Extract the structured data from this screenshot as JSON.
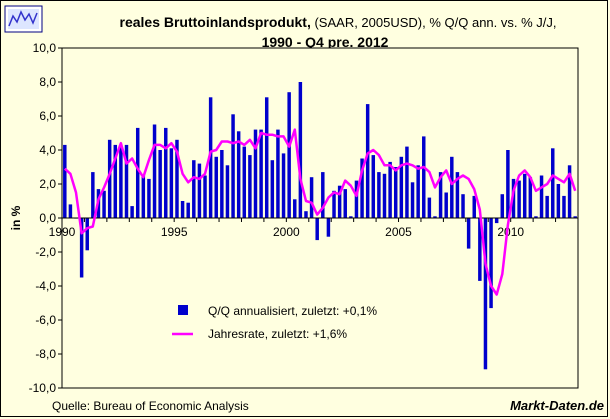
{
  "chart_data": {
    "type": "bar",
    "title_bold": "reales Bruttoinlandsprodukt,",
    "title_normal": " (SAAR, 2005USD), % Q/Q ann. vs. % J/J,",
    "title_line2": "1990 - Q4 pre. 2012",
    "ylabel": "in %",
    "xlabel": "",
    "ylim": [
      -10,
      10
    ],
    "y_ticks": [
      "10,0",
      "8,0",
      "6,0",
      "4,0",
      "2,0",
      "0,0",
      "-2,0",
      "-4,0",
      "-6,0",
      "-8,0",
      "-10,0"
    ],
    "x_ticks": [
      "1990",
      "1995",
      "2000",
      "2005",
      "2010"
    ],
    "start_year": 1990,
    "series": [
      {
        "name": "Q/Q annualisiert, zuletzt: +0,1%",
        "type": "bar",
        "color": "#0000cc",
        "values": [
          4.3,
          0.8,
          0.0,
          -3.5,
          -1.9,
          2.7,
          1.7,
          1.6,
          4.6,
          4.3,
          4.2,
          4.3,
          0.7,
          5.3,
          2.5,
          2.3,
          5.5,
          4.0,
          5.3,
          4.1,
          4.6,
          1.0,
          0.9,
          3.4,
          3.2,
          2.5,
          7.1,
          3.6,
          4.0,
          3.1,
          6.1,
          5.1,
          4.2,
          3.7,
          5.2,
          5.2,
          7.1,
          3.4,
          5.2,
          3.8,
          7.4,
          1.1,
          8.0,
          0.4,
          2.4,
          -1.3,
          2.7,
          -1.1,
          1.6,
          1.9,
          1.7,
          0.1,
          2.2,
          3.5,
          6.7,
          3.7,
          2.7,
          2.6,
          3.3,
          3.0,
          3.6,
          4.2,
          2.1,
          3.1,
          4.8,
          1.2,
          0.1,
          2.7,
          1.5,
          3.6,
          2.7,
          1.4,
          -1.8,
          1.3,
          -3.7,
          -8.9,
          -5.3,
          -0.3,
          1.4,
          4.0,
          2.3,
          2.2,
          2.6,
          2.4,
          0.1,
          2.5,
          1.3,
          4.1,
          2.0,
          1.3,
          3.1,
          0.1
        ]
      },
      {
        "name": "Jahresrate, zuletzt: +1,6%",
        "type": "line",
        "color": "#ff00ff",
        "values": [
          2.9,
          2.6,
          1.5,
          -0.9,
          -0.6,
          -0.5,
          1.1,
          1.8,
          2.6,
          3.5,
          4.4,
          3.2,
          3.5,
          2.9,
          2.4,
          3.4,
          4.3,
          4.3,
          4.1,
          4.4,
          3.9,
          2.6,
          2.1,
          2.4,
          2.3,
          2.6,
          3.9,
          4.0,
          4.5,
          4.5,
          4.4,
          4.5,
          4.3,
          4.6,
          4.1,
          5.0,
          4.9,
          4.9,
          4.8,
          4.8,
          4.2,
          5.2,
          2.3,
          1.0,
          0.9,
          0.2,
          0.6,
          1.2,
          1.5,
          1.4,
          2.2,
          1.9,
          1.3,
          2.8,
          3.8,
          4.0,
          3.7,
          3.1,
          3.1,
          2.8,
          3.1,
          3.2,
          3.1,
          2.9,
          3.0,
          2.7,
          1.8,
          2.4,
          2.8,
          2.0,
          2.3,
          2.5,
          2.3,
          1.7,
          0.5,
          -2.7,
          -4.0,
          -4.5,
          -3.3,
          -0.4,
          1.6,
          2.5,
          2.8,
          2.4,
          1.6,
          1.8,
          2.0,
          2.5,
          2.3,
          2.1,
          2.6,
          1.6
        ]
      }
    ],
    "legend_position": "lower-left inside plot",
    "source": "Quelle: Bureau of Economic Analysis",
    "brand": "Markt-Daten.de"
  }
}
